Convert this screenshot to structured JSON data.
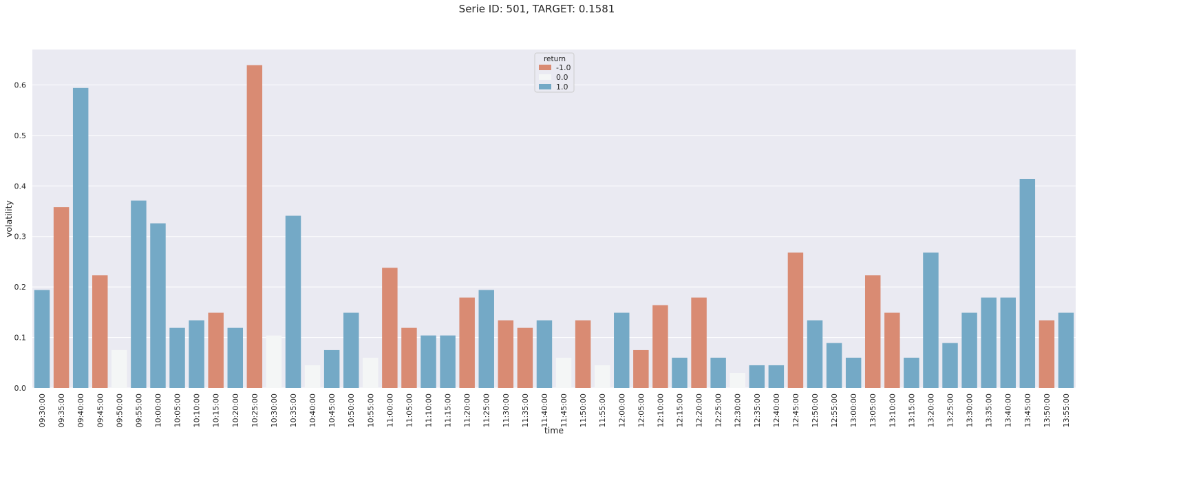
{
  "chart_data": {
    "type": "bar",
    "title": "Serie ID: 501, TARGET: 0.1581",
    "xlabel": "time",
    "ylabel": "volatility",
    "ylim": [
      0,
      0.67
    ],
    "yticks": [
      "0.0",
      "0.1",
      "0.2",
      "0.3",
      "0.4",
      "0.5",
      "0.6"
    ],
    "grid": true,
    "legend": {
      "title": "return",
      "placement": "top-center",
      "entries": [
        {
          "label": "-1.0",
          "color": "#d98b73"
        },
        {
          "label": "0.0",
          "color": "#f4f6f6"
        },
        {
          "label": "1.0",
          "color": "#74a9c6"
        }
      ]
    },
    "colors": {
      "-1.0": "#d98b73",
      "0.0": "#f4f6f6",
      "1.0": "#74a9c6",
      "background": "#eaeaf2",
      "grid": "#ffffff"
    },
    "categories": [
      "09:30:00",
      "09:35:00",
      "09:40:00",
      "09:45:00",
      "09:50:00",
      "09:55:00",
      "10:00:00",
      "10:05:00",
      "10:10:00",
      "10:15:00",
      "10:20:00",
      "10:25:00",
      "10:30:00",
      "10:35:00",
      "10:40:00",
      "10:45:00",
      "10:50:00",
      "10:55:00",
      "11:00:00",
      "11:05:00",
      "11:10:00",
      "11:15:00",
      "11:20:00",
      "11:25:00",
      "11:30:00",
      "11:35:00",
      "11:40:00",
      "11:45:00",
      "11:50:00",
      "11:55:00",
      "12:00:00",
      "12:05:00",
      "12:10:00",
      "12:15:00",
      "12:20:00",
      "12:25:00",
      "12:30:00",
      "12:35:00",
      "12:40:00",
      "12:45:00",
      "12:50:00",
      "12:55:00",
      "13:00:00",
      "13:05:00",
      "13:10:00",
      "13:15:00",
      "13:20:00",
      "13:25:00",
      "13:30:00",
      "13:35:00",
      "13:40:00",
      "13:45:00",
      "13:50:00",
      "13:55:00"
    ],
    "values": [
      0.194,
      0.358,
      0.594,
      0.223,
      0.075,
      0.371,
      0.326,
      0.119,
      0.134,
      0.149,
      0.119,
      0.639,
      0.104,
      0.341,
      0.045,
      0.075,
      0.149,
      0.06,
      0.238,
      0.119,
      0.104,
      0.104,
      0.179,
      0.194,
      0.134,
      0.119,
      0.134,
      0.06,
      0.134,
      0.045,
      0.149,
      0.075,
      0.164,
      0.06,
      0.179,
      0.06,
      0.03,
      0.045,
      0.045,
      0.268,
      0.134,
      0.089,
      0.06,
      0.223,
      0.149,
      0.06,
      0.268,
      0.089,
      0.149,
      0.179,
      0.179,
      0.414,
      0.134,
      0.149
    ],
    "return": [
      "1.0",
      "-1.0",
      "1.0",
      "-1.0",
      "0.0",
      "1.0",
      "1.0",
      "1.0",
      "1.0",
      "-1.0",
      "1.0",
      "-1.0",
      "0.0",
      "1.0",
      "0.0",
      "1.0",
      "1.0",
      "0.0",
      "-1.0",
      "-1.0",
      "1.0",
      "1.0",
      "-1.0",
      "1.0",
      "-1.0",
      "-1.0",
      "1.0",
      "0.0",
      "-1.0",
      "0.0",
      "1.0",
      "-1.0",
      "-1.0",
      "1.0",
      "-1.0",
      "1.0",
      "0.0",
      "1.0",
      "1.0",
      "-1.0",
      "1.0",
      "1.0",
      "1.0",
      "-1.0",
      "-1.0",
      "1.0",
      "1.0",
      "1.0",
      "1.0",
      "1.0",
      "1.0",
      "1.0",
      "-1.0",
      "1.0"
    ]
  }
}
